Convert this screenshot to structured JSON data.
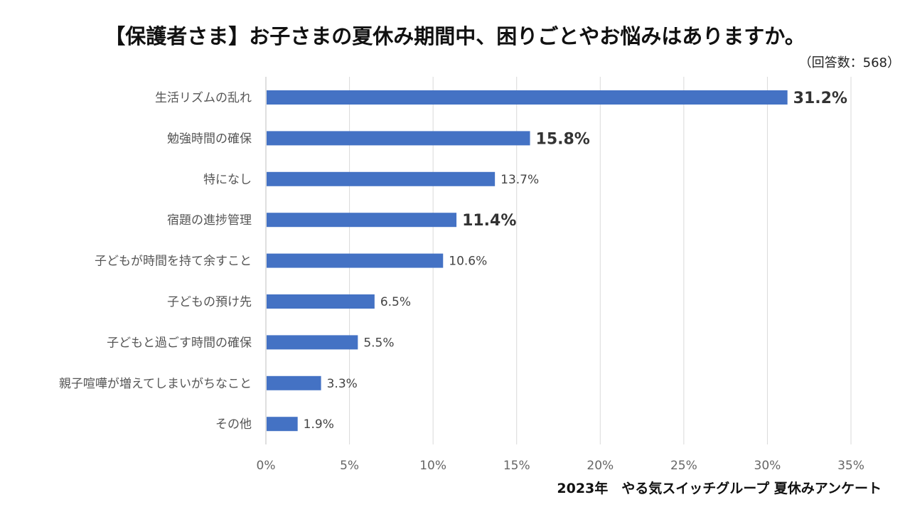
{
  "title": "【保護者さま】お子さまの夏休み期間中、困りごとやお悩みはありますか。",
  "note": "（回答数：568）",
  "footer": "2023年　やる気スイッチグループ 夏休みアンケート",
  "chart_data": {
    "type": "bar",
    "orientation": "horizontal",
    "categories": [
      "生活リズムの乱れ",
      "勉強時間の確保",
      "特になし",
      "宿題の進捗管理",
      "子どもが時間を持て余すこと",
      "子どもの預け先",
      "子どもと過ごす時間の確保",
      "親子喧嘩が増えてしまいがちなこと",
      "その他"
    ],
    "values": [
      31.2,
      15.8,
      13.7,
      11.4,
      10.6,
      6.5,
      5.5,
      3.3,
      1.9
    ],
    "value_labels": [
      "31.2%",
      "15.8%",
      "13.7%",
      "11.4%",
      "10.6%",
      "6.5%",
      "5.5%",
      "3.3%",
      "1.9%"
    ],
    "highlighted": [
      true,
      true,
      false,
      true,
      false,
      false,
      false,
      false,
      false
    ],
    "xlim": [
      0,
      35
    ],
    "xticks": [
      0,
      5,
      10,
      15,
      20,
      25,
      30,
      35
    ],
    "xtick_labels": [
      "0%",
      "5%",
      "10%",
      "15%",
      "20%",
      "25%",
      "30%",
      "35%"
    ],
    "grid": true,
    "bar_color": "#4472C4",
    "xlabel": "",
    "ylabel": ""
  }
}
